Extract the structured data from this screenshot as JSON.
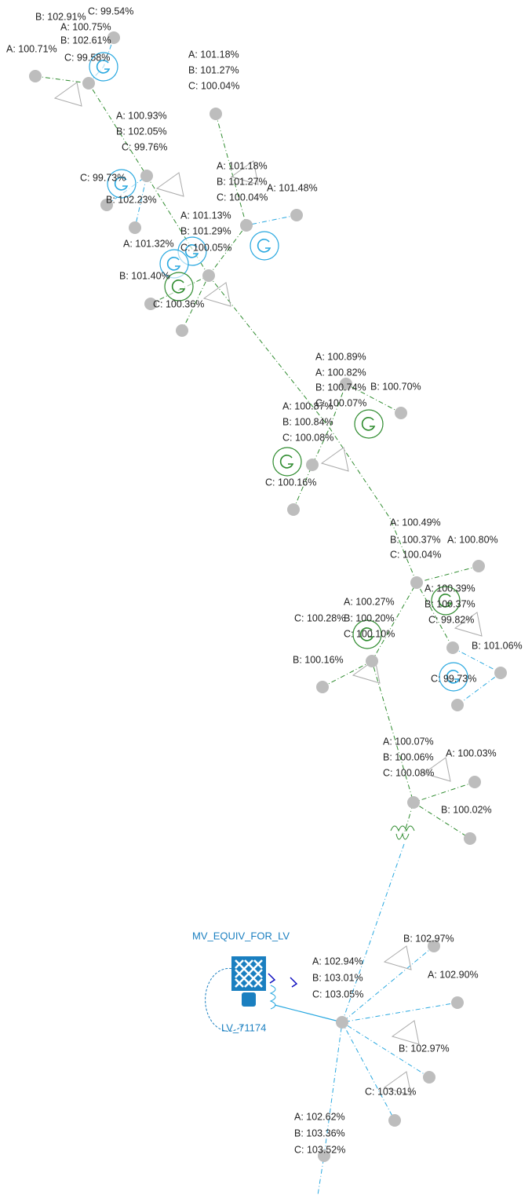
{
  "labels": [
    "B: 102.91%",
    "C: 99.54%",
    "A: 100.75%",
    "B: 102.61%",
    "C: 99.58%",
    "A: 100.71%",
    "A: 101.18%",
    "B: 101.27%",
    "C: 100.04%",
    "A: 100.93%",
    "B: 102.05%",
    "C: 99.76%",
    "C: 99.73%",
    "B: 102.23%",
    "A: 101.18%",
    "B: 101.27%",
    "C: 100.04%",
    "A: 101.48%",
    "A: 101.13%",
    "B: 101.29%",
    "C: 100.05%",
    "A: 101.32%",
    "B: 101.40%",
    "C: 100.36%",
    "A: 100.89%",
    "A: 100.82%",
    "B: 100.74%",
    "B: 100.70%",
    "C: 100.07%",
    "A: 100.87%",
    "B: 100.84%",
    "C: 100.08%",
    "C: 100.16%",
    "A: 100.49%",
    "B: 100.37%",
    "A: 100.80%",
    "C: 100.04%",
    "A: 100.39%",
    "B: 100.37%",
    "C: 99.82%",
    "B: 101.06%",
    "C: 99.73%",
    "A: 100.27%",
    "C: 100.28%",
    "B: 100.20%",
    "C: 100.10%",
    "B: 100.16%",
    "A: 100.07%",
    "B: 100.06%",
    "A: 100.03%",
    "C: 100.08%",
    "B: 100.02%",
    "MV_EQUIV_FOR_LV",
    "LV_71174",
    "B: 102.97%",
    "A: 102.94%",
    "B: 103.01%",
    "C: 103.05%",
    "A: 102.90%",
    "B: 102.97%",
    "C: 103.01%",
    "A: 102.62%",
    "B: 103.36%",
    "C: 103.52%"
  ]
}
